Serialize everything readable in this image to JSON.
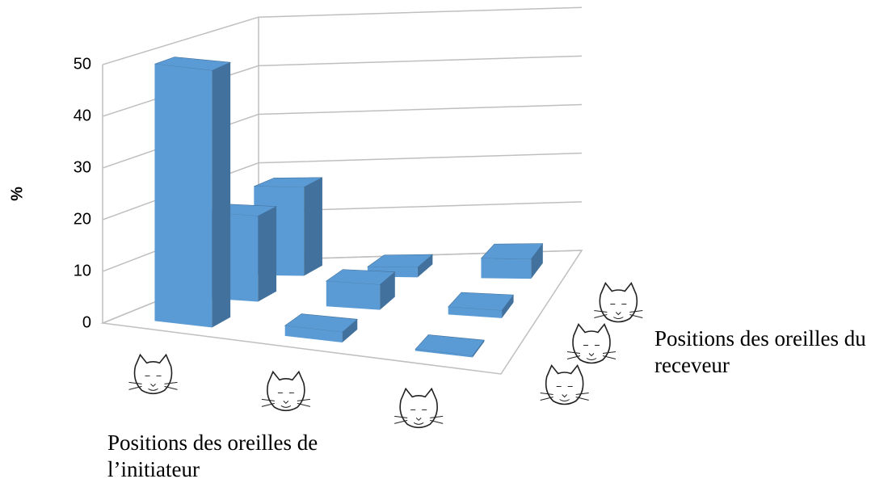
{
  "chart_data": {
    "type": "bar3d",
    "y_label": "%",
    "x_label": "Positions des oreilles de l’initiateur",
    "z_label": "Positions des oreilles du receveur",
    "categories": [
      null,
      null,
      null
    ],
    "depth_categories": [
      null,
      null,
      null
    ],
    "series": [
      {
        "color": "#5b9bd5",
        "values": [
          50,
          2,
          0.3
        ]
      },
      {
        "color": "#5b9bd5",
        "values": [
          17,
          5,
          1.5
        ]
      },
      {
        "color": "#5b9bd5",
        "values": [
          18,
          2,
          4
        ]
      }
    ],
    "ylim": [
      0,
      50
    ],
    "yticks": [
      0,
      10,
      20,
      30,
      40,
      50
    ],
    "grid": true
  }
}
